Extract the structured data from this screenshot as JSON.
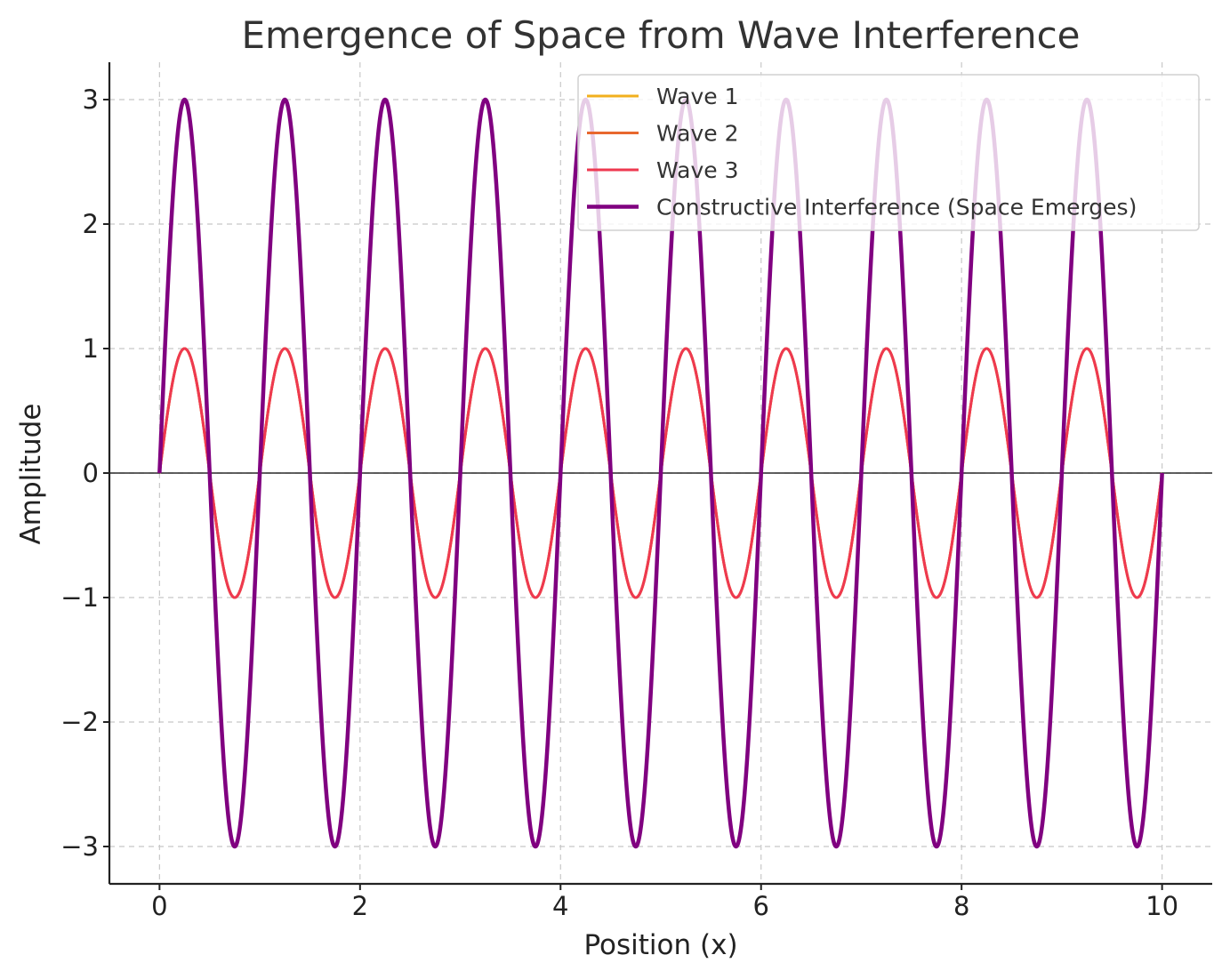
{
  "chart_data": {
    "type": "line",
    "title": "Emergence of Space from Wave Interference",
    "xlabel": "Position (x)",
    "ylabel": "Amplitude",
    "xlim": [
      -0.5,
      10.5
    ],
    "ylim": [
      -3.3,
      3.3
    ],
    "xticks": [
      0,
      2,
      4,
      6,
      8,
      10
    ],
    "xtick_labels": [
      "0",
      "2",
      "4",
      "6",
      "8",
      "10"
    ],
    "yticks": [
      -3,
      -2,
      -1,
      0,
      1,
      2,
      3
    ],
    "ytick_labels": [
      "−3",
      "−2",
      "−1",
      "0",
      "1",
      "2",
      "3"
    ],
    "grid": true,
    "legend_position": "top-right",
    "reference_line_y": 0,
    "x_range": [
      0,
      10
    ],
    "series": [
      {
        "name": "Wave 1",
        "color": "#f2b01e",
        "function": "sin",
        "amplitude": 1,
        "frequency": 1,
        "phase": 0,
        "line_width": 3
      },
      {
        "name": "Wave 2",
        "color": "#e8682e",
        "function": "sin",
        "amplitude": 1,
        "frequency": 1,
        "phase": 0,
        "line_width": 3
      },
      {
        "name": "Wave 3",
        "color": "#ee3950",
        "function": "sin",
        "amplitude": 1,
        "frequency": 1,
        "phase": 0,
        "line_width": 3
      },
      {
        "name": "Constructive Interference (Space Emerges)",
        "color": "#800080",
        "function": "sin",
        "amplitude": 3,
        "frequency": 1,
        "phase": 0,
        "line_width": 4.5
      }
    ]
  }
}
